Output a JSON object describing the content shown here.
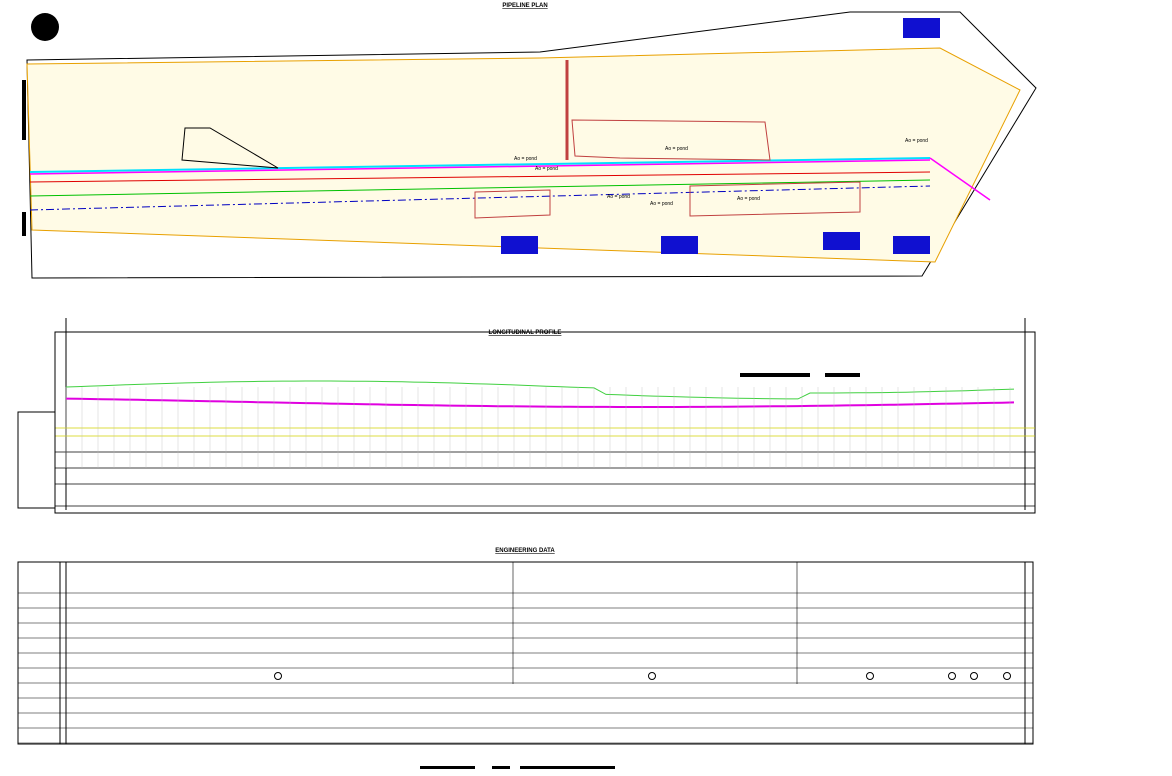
{
  "plan": {
    "title": "PIPELINE PLAN",
    "pond_labels": [
      "Ao = pond",
      "Ao = pond",
      "Ao = pond",
      "Ao = pond",
      "Ao = pond",
      "Ao = pond",
      "Ao = pond"
    ]
  },
  "profile": {
    "title": "LONGITUDINAL PROFILE"
  },
  "engineering": {
    "title": "ENGINEERING DATA"
  }
}
